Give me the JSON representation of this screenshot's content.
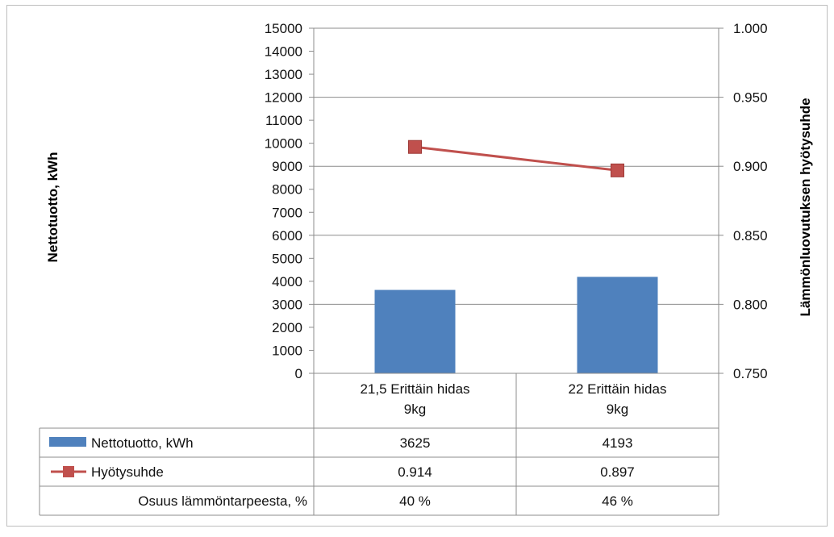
{
  "chart_data": {
    "type": "bar",
    "categories": [
      [
        "21,5 Erittäin hidas",
        "9kg"
      ],
      [
        "22 Erittäin hidas",
        "9kg"
      ]
    ],
    "ylabel": "Nettotuotto, kWh",
    "y2label": "Lämmönluovutuksen hyötysuhde",
    "ylim": [
      0,
      15000
    ],
    "y2lim": [
      0.75,
      1.0
    ],
    "yticks": [
      "0",
      "1000",
      "2000",
      "3000",
      "4000",
      "5000",
      "6000",
      "7000",
      "8000",
      "9000",
      "10000",
      "11000",
      "12000",
      "13000",
      "14000",
      "15000"
    ],
    "y2ticks": [
      "0.750",
      "0.800",
      "0.850",
      "0.900",
      "0.950",
      "1.000"
    ],
    "grid": true,
    "series": [
      {
        "name": "Nettotuotto, kWh",
        "type": "bar",
        "axis": "left",
        "color": "#4f81bd",
        "values": [
          3625,
          4193
        ],
        "labels": [
          "3625",
          "4193"
        ]
      },
      {
        "name": "Hyötysuhde",
        "type": "line",
        "axis": "right",
        "color": "#c0504d",
        "marker": "square",
        "values": [
          0.914,
          0.897
        ],
        "labels": [
          "0.914",
          "0.897"
        ]
      }
    ],
    "table_rows": [
      {
        "label": "Osuus lämmöntarpeesta, %",
        "values": [
          "40 %",
          "46 %"
        ]
      }
    ]
  }
}
